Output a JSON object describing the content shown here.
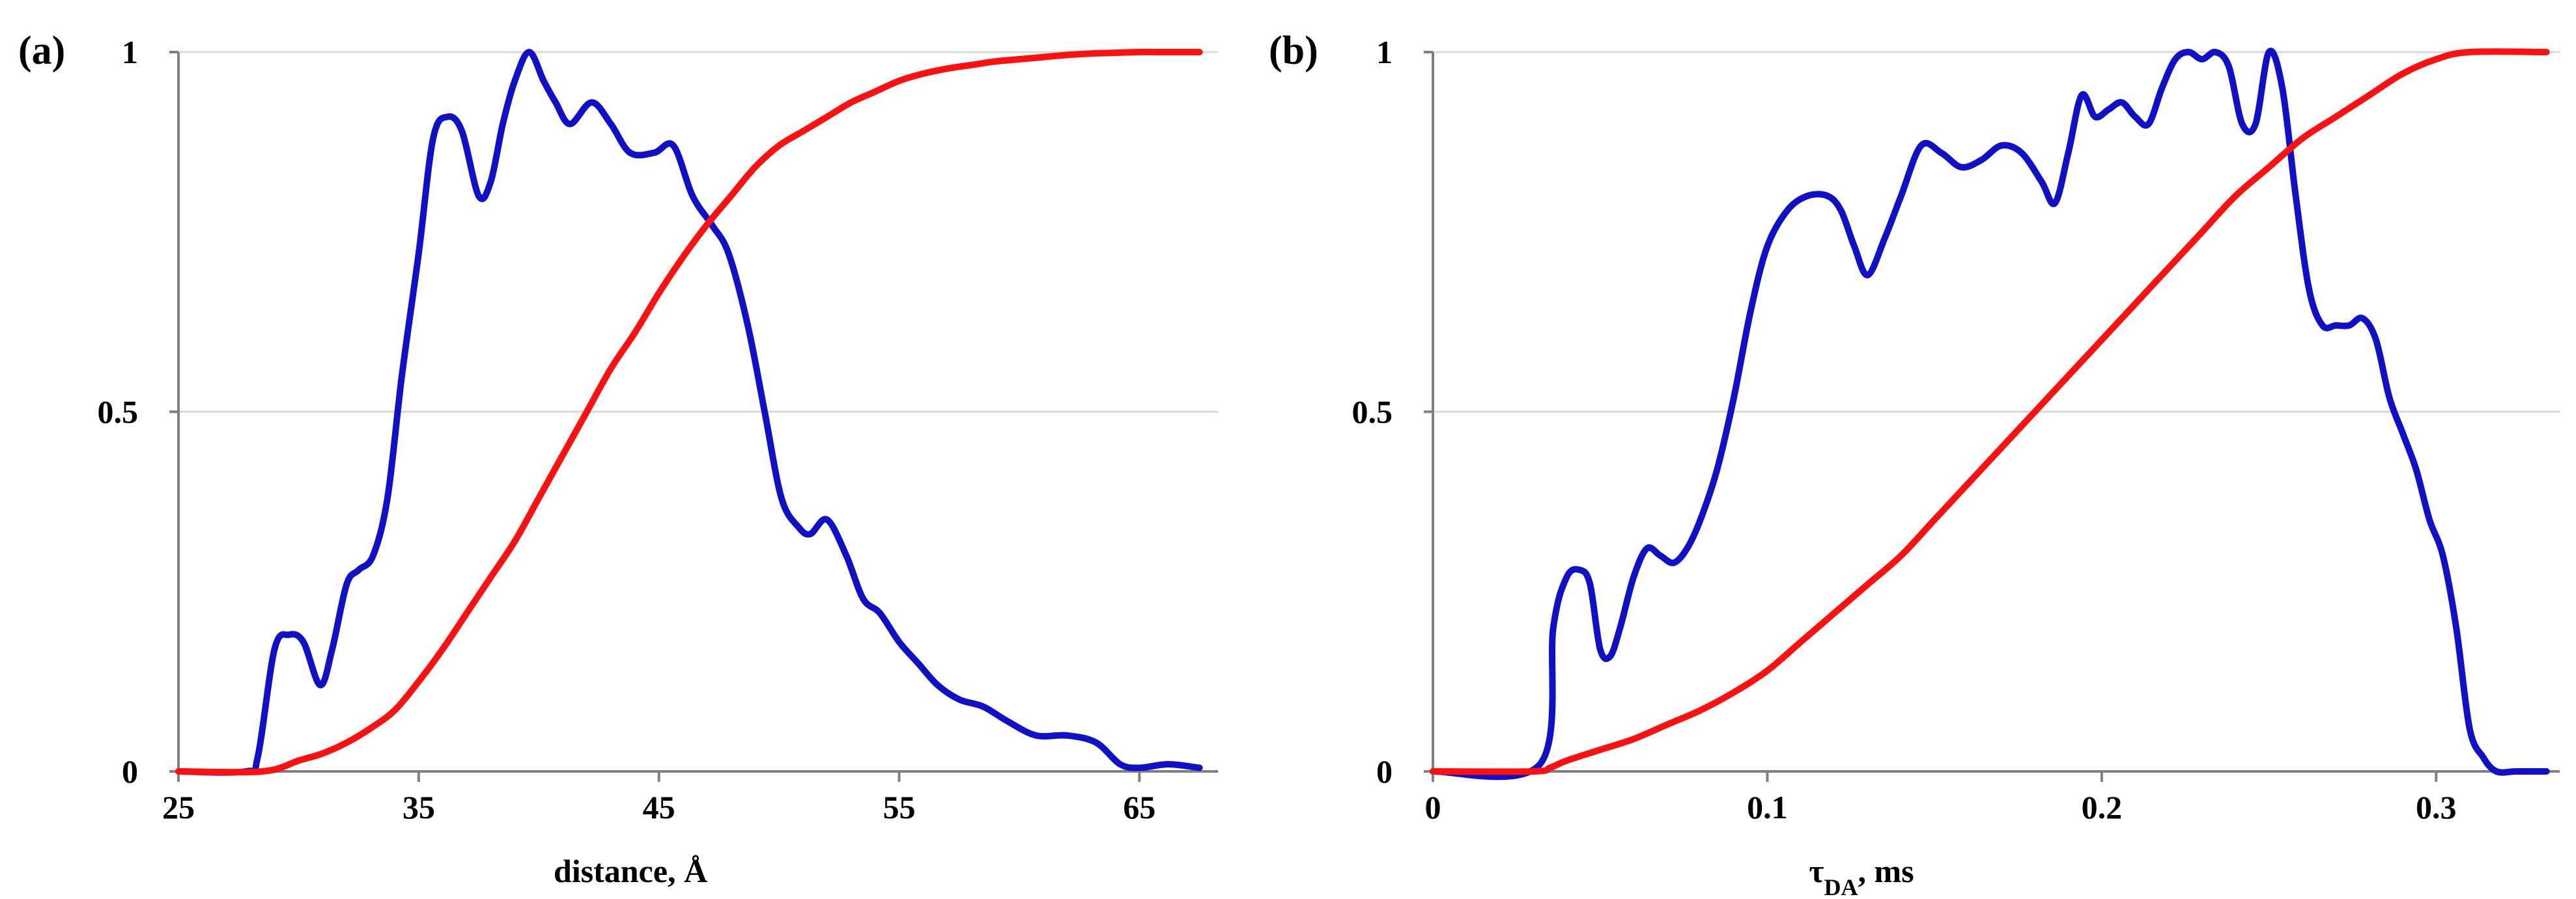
{
  "chart_data": [
    {
      "type": "line",
      "panel_label": "(a)",
      "xlabel": "distance, Å",
      "xlim": [
        25,
        68
      ],
      "ylim": [
        0,
        1
      ],
      "xticks": [
        "25",
        "35",
        "45",
        "55",
        "65"
      ],
      "yticks": [
        "0",
        "0.5",
        "1"
      ],
      "grid": true,
      "series": [
        {
          "color": "#1010c8",
          "x": [
            25,
            27.8,
            28.3,
            29,
            29.6,
            30.2,
            30.9,
            31.4,
            32,
            32.5,
            33.1,
            33.7,
            34.3,
            35,
            35.6,
            36.2,
            36.8,
            37.5,
            38,
            38.5,
            39,
            39.6,
            40.2,
            40.7,
            41.3,
            42.2,
            43,
            43.8,
            44.8,
            45.6,
            46.4,
            47.2,
            47.9,
            48.7,
            49.4,
            50.1,
            50.8,
            51.3,
            52,
            52.8,
            53.5,
            54.2,
            55,
            55.8,
            56.6,
            57.5,
            58.5,
            59.5,
            60.7,
            62,
            63.2,
            64.2,
            65,
            66.2,
            67.5
          ],
          "y": [
            0,
            0,
            0.02,
            0.17,
            0.19,
            0.18,
            0.12,
            0.17,
            0.26,
            0.28,
            0.3,
            0.38,
            0.55,
            0.72,
            0.88,
            0.91,
            0.89,
            0.8,
            0.82,
            0.9,
            0.96,
            1.0,
            0.96,
            0.93,
            0.9,
            0.93,
            0.9,
            0.86,
            0.86,
            0.87,
            0.8,
            0.76,
            0.72,
            0.62,
            0.5,
            0.38,
            0.34,
            0.33,
            0.35,
            0.3,
            0.24,
            0.22,
            0.18,
            0.15,
            0.12,
            0.1,
            0.09,
            0.07,
            0.05,
            0.05,
            0.04,
            0.01,
            0.005,
            0.01,
            0.005
          ]
        },
        {
          "color": "#ff1010",
          "x": [
            25,
            28.5,
            30,
            31,
            32,
            33,
            34,
            35,
            36,
            37,
            38,
            39,
            40,
            41,
            42,
            43,
            44,
            45,
            46,
            47,
            48,
            49,
            50,
            51,
            52,
            53,
            54,
            55,
            56,
            57,
            58,
            59,
            60,
            61,
            62,
            63,
            64,
            65,
            66,
            67.5
          ],
          "y": [
            0,
            0,
            0.015,
            0.025,
            0.04,
            0.06,
            0.085,
            0.125,
            0.17,
            0.22,
            0.27,
            0.32,
            0.38,
            0.44,
            0.5,
            0.56,
            0.61,
            0.665,
            0.715,
            0.76,
            0.8,
            0.84,
            0.87,
            0.89,
            0.91,
            0.93,
            0.945,
            0.96,
            0.97,
            0.977,
            0.982,
            0.987,
            0.99,
            0.993,
            0.996,
            0.998,
            0.999,
            1.0,
            1.0,
            1.0
          ]
        }
      ]
    },
    {
      "type": "line",
      "panel_label": "(b)",
      "xlabel": "τ",
      "xlabel_sub": "DA",
      "xlabel_suffix": ", ms",
      "xlim": [
        0,
        0.335
      ],
      "ylim": [
        0,
        1
      ],
      "xticks": [
        "0",
        "0.1",
        "0.2",
        "0.3"
      ],
      "yticks": [
        "0",
        "0.5",
        "1"
      ],
      "grid": true,
      "series": [
        {
          "color": "#1010c8",
          "x": [
            0,
            0.032,
            0.036,
            0.04,
            0.044,
            0.047,
            0.05,
            0.053,
            0.056,
            0.06,
            0.064,
            0.068,
            0.072,
            0.076,
            0.08,
            0.085,
            0.09,
            0.095,
            0.1,
            0.106,
            0.112,
            0.118,
            0.122,
            0.126,
            0.13,
            0.135,
            0.14,
            0.146,
            0.152,
            0.158,
            0.164,
            0.17,
            0.176,
            0.182,
            0.186,
            0.19,
            0.194,
            0.198,
            0.202,
            0.206,
            0.21,
            0.214,
            0.218,
            0.222,
            0.226,
            0.23,
            0.234,
            0.238,
            0.242,
            0.246,
            0.25,
            0.254,
            0.258,
            0.262,
            0.266,
            0.27,
            0.274,
            0.278,
            0.282,
            0.286,
            0.29,
            0.294,
            0.298,
            0.302,
            0.306,
            0.31,
            0.314,
            0.318,
            0.324,
            0.333
          ],
          "y": [
            0,
            0.01,
            0.2,
            0.27,
            0.28,
            0.26,
            0.17,
            0.16,
            0.2,
            0.27,
            0.31,
            0.3,
            0.29,
            0.31,
            0.35,
            0.42,
            0.52,
            0.64,
            0.73,
            0.78,
            0.8,
            0.8,
            0.78,
            0.73,
            0.69,
            0.74,
            0.8,
            0.87,
            0.86,
            0.84,
            0.85,
            0.87,
            0.86,
            0.82,
            0.79,
            0.86,
            0.94,
            0.91,
            0.92,
            0.93,
            0.91,
            0.9,
            0.95,
            0.99,
            1.0,
            0.99,
            1.0,
            0.98,
            0.9,
            0.9,
            1.0,
            0.95,
            0.8,
            0.67,
            0.62,
            0.62,
            0.62,
            0.63,
            0.6,
            0.52,
            0.47,
            0.42,
            0.35,
            0.3,
            0.2,
            0.06,
            0.02,
            0.0,
            0.0,
            0.0
          ]
        },
        {
          "color": "#ff1010",
          "x": [
            0,
            0.03,
            0.035,
            0.04,
            0.05,
            0.06,
            0.07,
            0.08,
            0.09,
            0.1,
            0.11,
            0.12,
            0.13,
            0.14,
            0.15,
            0.16,
            0.17,
            0.18,
            0.19,
            0.2,
            0.21,
            0.22,
            0.23,
            0.24,
            0.25,
            0.26,
            0.27,
            0.28,
            0.29,
            0.3,
            0.31,
            0.333
          ],
          "y": [
            0,
            0,
            0.005,
            0.015,
            0.03,
            0.045,
            0.065,
            0.085,
            0.11,
            0.14,
            0.18,
            0.22,
            0.26,
            0.3,
            0.35,
            0.4,
            0.45,
            0.5,
            0.55,
            0.6,
            0.65,
            0.7,
            0.75,
            0.8,
            0.84,
            0.88,
            0.91,
            0.94,
            0.97,
            0.99,
            1.0,
            1.0
          ]
        }
      ]
    }
  ]
}
